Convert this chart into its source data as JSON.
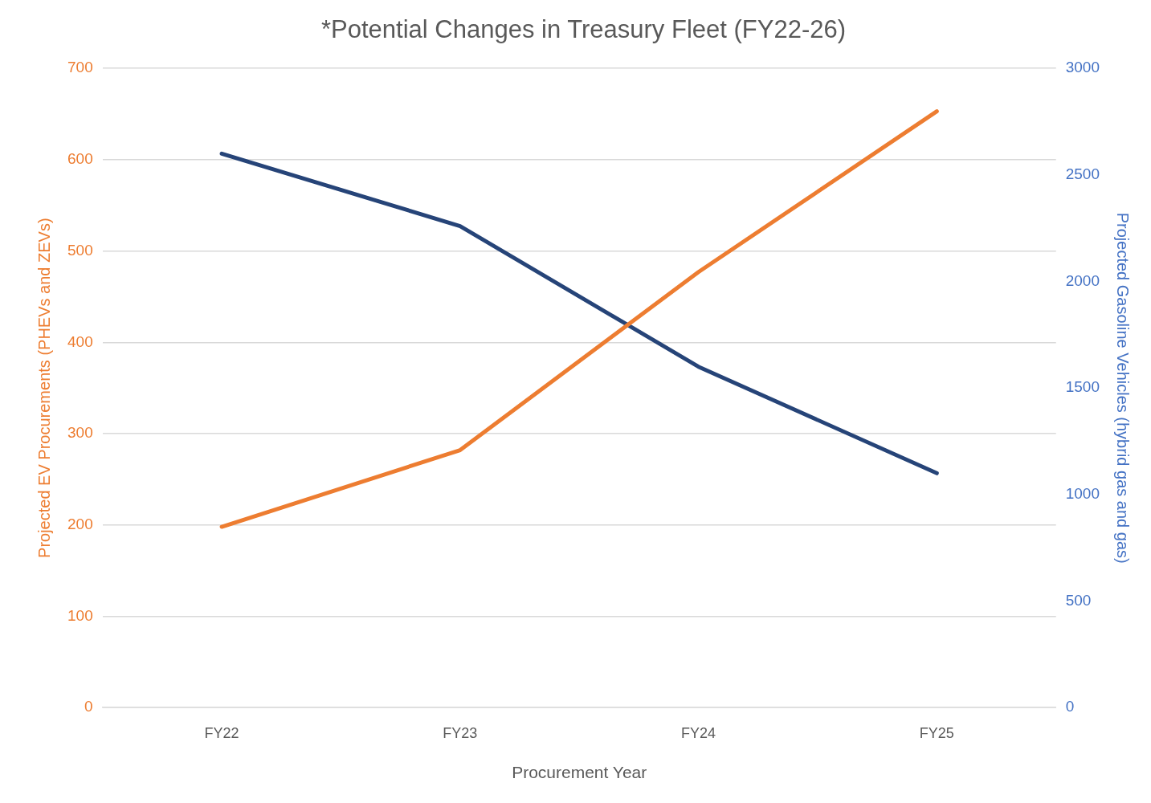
{
  "chart_data": {
    "type": "line",
    "title": "*Potential Changes in Treasury Fleet (FY22-26)",
    "xlabel": "Procurement Year",
    "ylabel": "Projected EV Procurements (PHEVs and ZEVs)",
    "y2label": "Projected Gasoline Vehicles (hybrid gas and gas)",
    "categories": [
      "FY22",
      "FY23",
      "FY24",
      "FY25"
    ],
    "series": [
      {
        "color": "#ed7d31",
        "values": [
          198,
          282,
          477,
          653
        ]
      },
      {
        "color": "#264478",
        "values": [
          2600,
          2260,
          1600,
          1100
        ],
        "axis": "y2"
      }
    ],
    "ylim": [
      0,
      700
    ],
    "yticks": [
      0,
      100,
      200,
      300,
      400,
      500,
      600,
      700
    ],
    "y2lim": [
      0,
      3000
    ],
    "y2ticks": [
      0,
      500,
      1000,
      1500,
      2000,
      2500,
      3000
    ],
    "grid": "y",
    "legend": false,
    "marker": "none",
    "line_style": "solid"
  }
}
